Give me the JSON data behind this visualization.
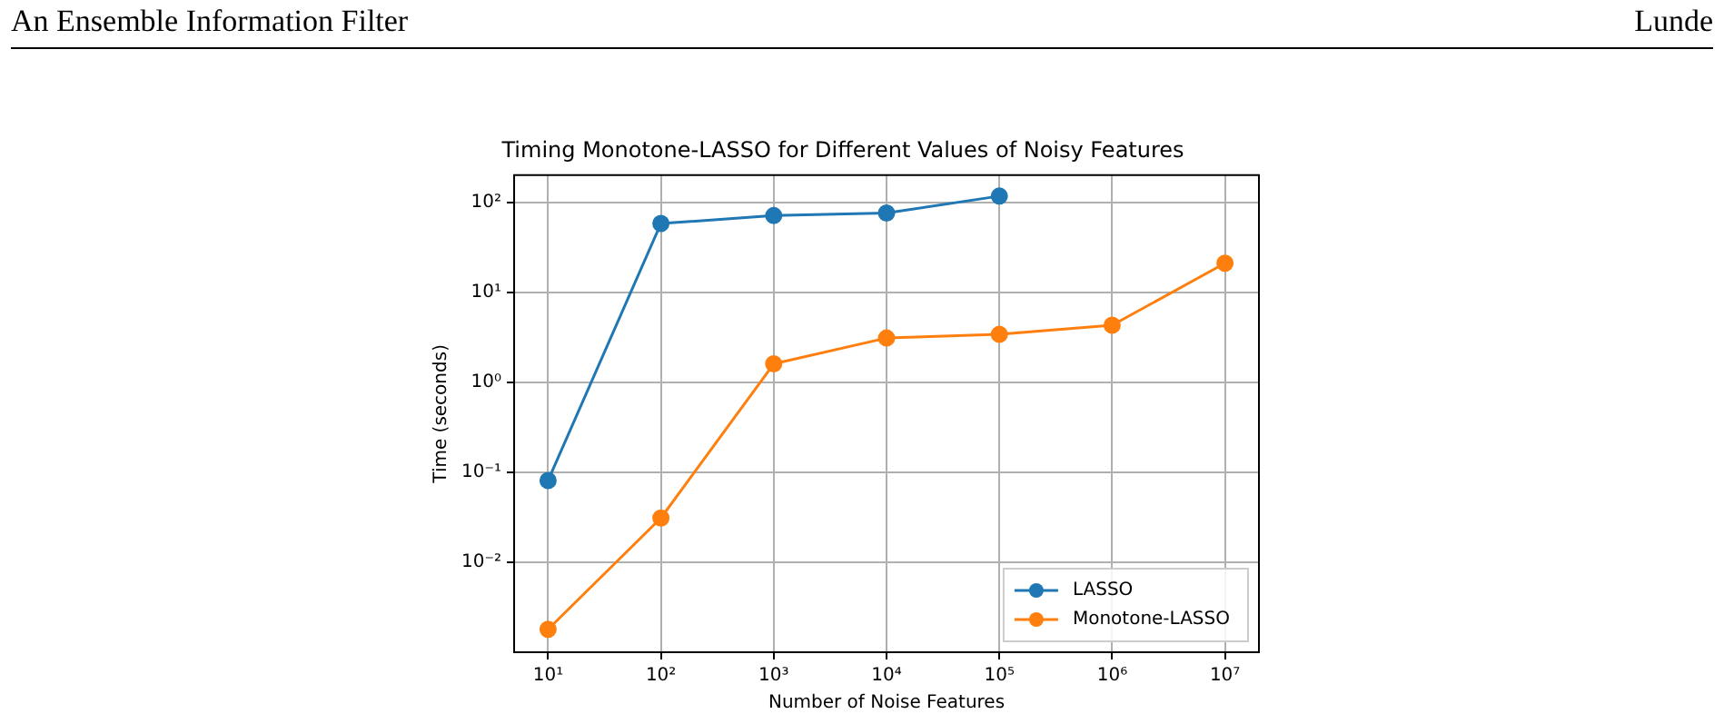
{
  "chart_data": {
    "type": "line",
    "title": "Timing Monotone-LASSO for Different Values of Noisy Features",
    "xlabel": "Number of Noise Features",
    "ylabel": "Time (seconds)",
    "annotations": [
      "An Ensemble Information Filter",
      "Lunde"
    ],
    "x": [
      10,
      100,
      1000,
      10000,
      100000,
      1000000,
      10000000
    ],
    "series": [
      {
        "name": "LASSO",
        "color": "#1f77b4",
        "values": [
          0.081,
          58,
          71,
          76,
          117,
          null,
          null
        ]
      },
      {
        "name": "Monotone-LASSO",
        "color": "#ff7f0e",
        "values": [
          0.0018,
          0.031,
          1.6,
          3.1,
          3.4,
          4.3,
          21
        ]
      }
    ],
    "log": "xy",
    "xlim": [
      5,
      20000000
    ],
    "ylim": [
      0.001,
      200
    ],
    "xticks": [
      {
        "value": 10,
        "label": "10¹"
      },
      {
        "value": 100,
        "label": "10²"
      },
      {
        "value": 1000,
        "label": "10³"
      },
      {
        "value": 10000,
        "label": "10⁴"
      },
      {
        "value": 100000,
        "label": "10⁵"
      },
      {
        "value": 1000000,
        "label": "10⁶"
      },
      {
        "value": 10000000,
        "label": "10⁷"
      }
    ],
    "yticks": [
      {
        "value": 0.01,
        "label": "10⁻²"
      },
      {
        "value": 0.1,
        "label": "10⁻¹"
      },
      {
        "value": 1,
        "label": "10⁰"
      },
      {
        "value": 10,
        "label": "10¹"
      },
      {
        "value": 100,
        "label": "10²"
      }
    ],
    "grid": true,
    "legend": "bottom right",
    "marker": "circle",
    "line_style": "solid"
  }
}
